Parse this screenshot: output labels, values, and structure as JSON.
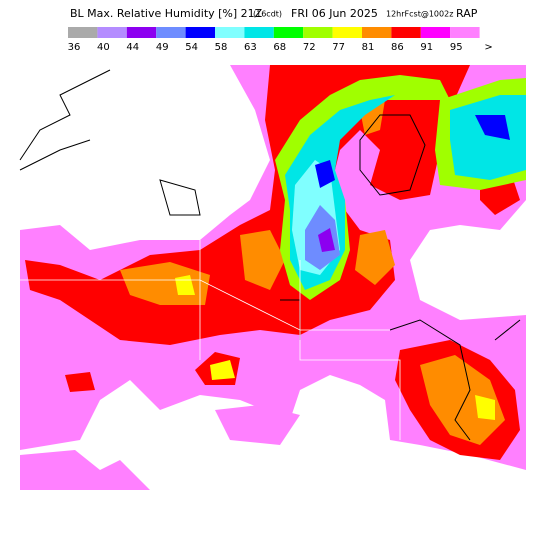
{
  "header": {
    "title_parts": [
      "BL Max. Relative Humidity [%] 21Z",
      "(16cdt)",
      "FRI 06 Jun 2025",
      "12hrFcst@1002z",
      "RAP"
    ]
  },
  "legend": {
    "labels": [
      "36",
      "40",
      "44",
      "49",
      "54",
      "58",
      "63",
      "68",
      "72",
      "77",
      "81",
      "86",
      "91",
      "95",
      ">"
    ],
    "colors": [
      "#aaaaaa",
      "#b48cff",
      "#8c00f0",
      "#6e8cff",
      "#0000ff",
      "#80ffff",
      "#00e6e6",
      "#00ff00",
      "#a0ff00",
      "#ffff00",
      "#ff8c00",
      "#ff0000",
      "#ff00ff",
      "#ff80ff"
    ]
  }
}
